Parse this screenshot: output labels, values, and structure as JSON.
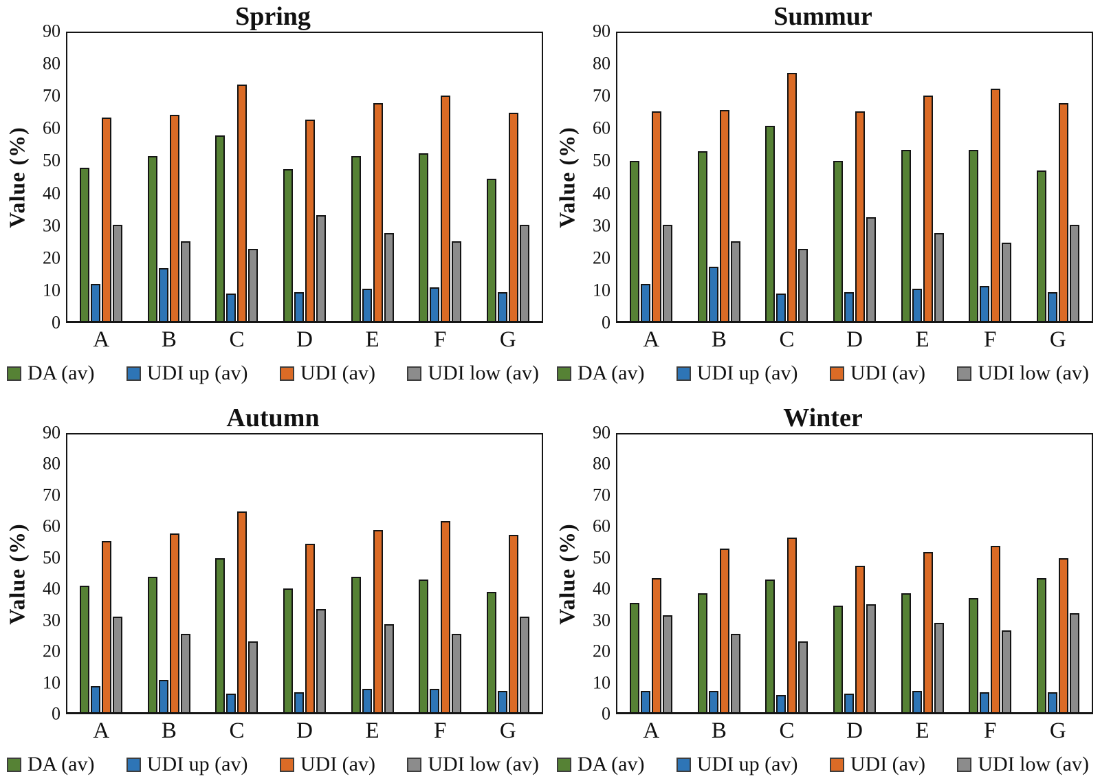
{
  "figure": {
    "ylabel": "Value (%)"
  },
  "chart_data": [
    {
      "type": "bar",
      "title": "Spring",
      "ylabel": "Value (%)",
      "ylim": [
        0,
        90
      ],
      "ytick_step": 10,
      "grid": false,
      "legend_position": "bottom",
      "categories": [
        "A",
        "B",
        "C",
        "D",
        "E",
        "F",
        "G"
      ],
      "series": [
        {
          "name": "DA (av)",
          "color": "#568235",
          "values": [
            48,
            51.5,
            58,
            47.5,
            51.5,
            52.5,
            44.5
          ]
        },
        {
          "name": "UDI up (av)",
          "color": "#2E75B6",
          "values": [
            11.5,
            16.5,
            8.5,
            9,
            10,
            10.5,
            9
          ]
        },
        {
          "name": "UDI (av)",
          "color": "#DB6B26",
          "values": [
            63.5,
            64.5,
            74,
            63,
            68,
            70.5,
            65
          ]
        },
        {
          "name": "UDI low (av)",
          "color": "#8C8C8C",
          "values": [
            30,
            25,
            22.5,
            33,
            27.5,
            25,
            30
          ]
        }
      ]
    },
    {
      "type": "bar",
      "title": "Summur",
      "ylabel": "Value (%)",
      "ylim": [
        0,
        90
      ],
      "ytick_step": 10,
      "grid": false,
      "legend_position": "bottom",
      "categories": [
        "A",
        "B",
        "C",
        "D",
        "E",
        "F",
        "G"
      ],
      "series": [
        {
          "name": "DA (av)",
          "color": "#568235",
          "values": [
            50,
            53,
            61,
            50,
            53.5,
            53.5,
            47
          ]
        },
        {
          "name": "UDI up (av)",
          "color": "#2E75B6",
          "values": [
            11.5,
            17,
            8.5,
            9,
            10,
            11,
            9
          ]
        },
        {
          "name": "UDI (av)",
          "color": "#DB6B26",
          "values": [
            65.5,
            66,
            77.5,
            65.5,
            70.5,
            72.5,
            68
          ]
        },
        {
          "name": "UDI low (av)",
          "color": "#8C8C8C",
          "values": [
            30,
            25,
            22.5,
            32.5,
            27.5,
            24.5,
            30
          ]
        }
      ]
    },
    {
      "type": "bar",
      "title": "Autumn",
      "ylabel": "Value (%)",
      "ylim": [
        0,
        90
      ],
      "ytick_step": 10,
      "grid": false,
      "legend_position": "bottom",
      "categories": [
        "A",
        "B",
        "C",
        "D",
        "E",
        "F",
        "G"
      ],
      "series": [
        {
          "name": "DA (av)",
          "color": "#568235",
          "values": [
            41,
            44,
            50,
            40,
            44,
            43,
            39
          ]
        },
        {
          "name": "UDI up (av)",
          "color": "#2E75B6",
          "values": [
            8.5,
            10.5,
            6,
            6.5,
            7.5,
            7.5,
            7
          ]
        },
        {
          "name": "UDI (av)",
          "color": "#DB6B26",
          "values": [
            55.5,
            58,
            65,
            54.5,
            59,
            62,
            57.5
          ]
        },
        {
          "name": "UDI low (av)",
          "color": "#8C8C8C",
          "values": [
            31,
            25.5,
            23,
            33.5,
            28.5,
            25.5,
            31
          ]
        }
      ]
    },
    {
      "type": "bar",
      "title": "Winter",
      "ylabel": "Value (%)",
      "ylim": [
        0,
        90
      ],
      "ytick_step": 10,
      "grid": false,
      "legend_position": "bottom",
      "categories": [
        "A",
        "B",
        "C",
        "D",
        "E",
        "F",
        "G"
      ],
      "series": [
        {
          "name": "DA (av)",
          "color": "#568235",
          "values": [
            35.5,
            38.5,
            43,
            34.5,
            38.5,
            37,
            43.5
          ]
        },
        {
          "name": "UDI up (av)",
          "color": "#2E75B6",
          "values": [
            7,
            7,
            5.5,
            6,
            7,
            6.5,
            6.5
          ]
        },
        {
          "name": "UDI (av)",
          "color": "#DB6B26",
          "values": [
            43.5,
            53,
            56.5,
            47.5,
            52,
            54,
            50
          ]
        },
        {
          "name": "UDI low (av)",
          "color": "#8C8C8C",
          "values": [
            31.5,
            25.5,
            23,
            35,
            29,
            26.5,
            32
          ]
        }
      ]
    }
  ]
}
